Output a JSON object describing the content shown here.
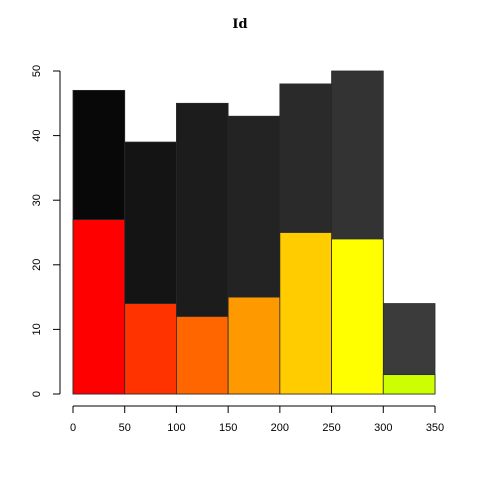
{
  "chart_data": {
    "type": "bar",
    "title": "Id",
    "xlabel": "",
    "ylabel": "",
    "xlim": [
      0,
      350
    ],
    "ylim": [
      0,
      50
    ],
    "x_ticks": [
      0,
      50,
      100,
      150,
      200,
      250,
      300,
      350
    ],
    "y_ticks": [
      0,
      10,
      20,
      30,
      40,
      50
    ],
    "bins": [
      [
        0,
        50
      ],
      [
        50,
        100
      ],
      [
        100,
        150
      ],
      [
        150,
        200
      ],
      [
        200,
        250
      ],
      [
        250,
        300
      ],
      [
        300,
        350
      ]
    ],
    "grid": false,
    "legend": "none",
    "series": [
      {
        "values": [
          47,
          39,
          45,
          43,
          48,
          50,
          14
        ],
        "colors": [
          "#080808",
          "#141414",
          "#1c1c1c",
          "#232323",
          "#2a2a2a",
          "#333333",
          "#3b3b3b"
        ]
      },
      {
        "values": [
          27,
          14,
          12,
          15,
          25,
          24,
          3
        ],
        "colors": [
          "#ff0000",
          "#ff3300",
          "#ff6600",
          "#ff9900",
          "#ffcc00",
          "#ffff00",
          "#ccff00"
        ]
      }
    ]
  }
}
